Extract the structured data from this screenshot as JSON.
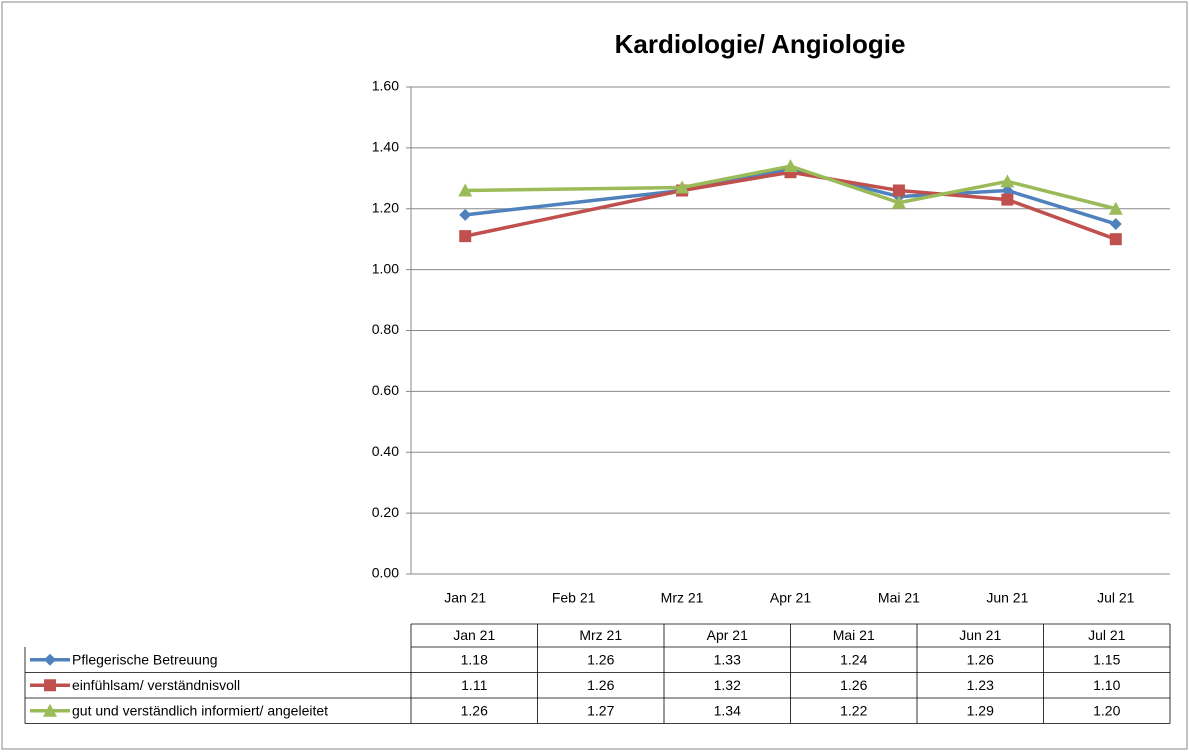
{
  "chart_data": {
    "type": "line",
    "title": "Kardiologie/ Angiologie",
    "categories": [
      "Jan 21",
      "Feb 21",
      "Mrz 21",
      "Apr 21",
      "Mai 21",
      "Jun 21",
      "Jul 21"
    ],
    "ylim": [
      0,
      1.6
    ],
    "yticks": [
      {
        "value": 0,
        "label": "0.00"
      },
      {
        "value": 0.2,
        "label": "0.20"
      },
      {
        "value": 0.4,
        "label": "0.40"
      },
      {
        "value": 0.6,
        "label": "0.60"
      },
      {
        "value": 0.8,
        "label": "0.80"
      },
      {
        "value": 1,
        "label": "1.00"
      },
      {
        "value": 1.2,
        "label": "1.20"
      },
      {
        "value": 1.4,
        "label": "1.40"
      },
      {
        "value": 1.6,
        "label": "1.60"
      }
    ],
    "grid": true,
    "connect_gaps": true,
    "data_table": true,
    "series": [
      {
        "name": "Pflegerische Betreuung",
        "color": "#4f81bd",
        "marker": "diamond",
        "values": [
          1.18,
          null,
          1.26,
          1.33,
          1.24,
          1.26,
          1.15
        ],
        "value_labels": [
          "1.18",
          null,
          "1.26",
          "1.33",
          "1.24",
          "1.26",
          "1.15"
        ]
      },
      {
        "name": "einfühlsam/ verständnisvoll",
        "color": "#c0504d",
        "marker": "square",
        "values": [
          1.11,
          null,
          1.26,
          1.32,
          1.26,
          1.23,
          1.1
        ],
        "value_labels": [
          "1.11",
          null,
          "1.26",
          "1.32",
          "1.26",
          "1.23",
          "1.10"
        ]
      },
      {
        "name": "gut und verständlich informiert/ angeleitet",
        "color": "#9bbb59",
        "marker": "triangle",
        "values": [
          1.26,
          null,
          1.27,
          1.34,
          1.22,
          1.29,
          1.2
        ],
        "value_labels": [
          "1.26",
          null,
          "1.27",
          "1.34",
          "1.22",
          "1.29",
          "1.20"
        ]
      }
    ]
  }
}
